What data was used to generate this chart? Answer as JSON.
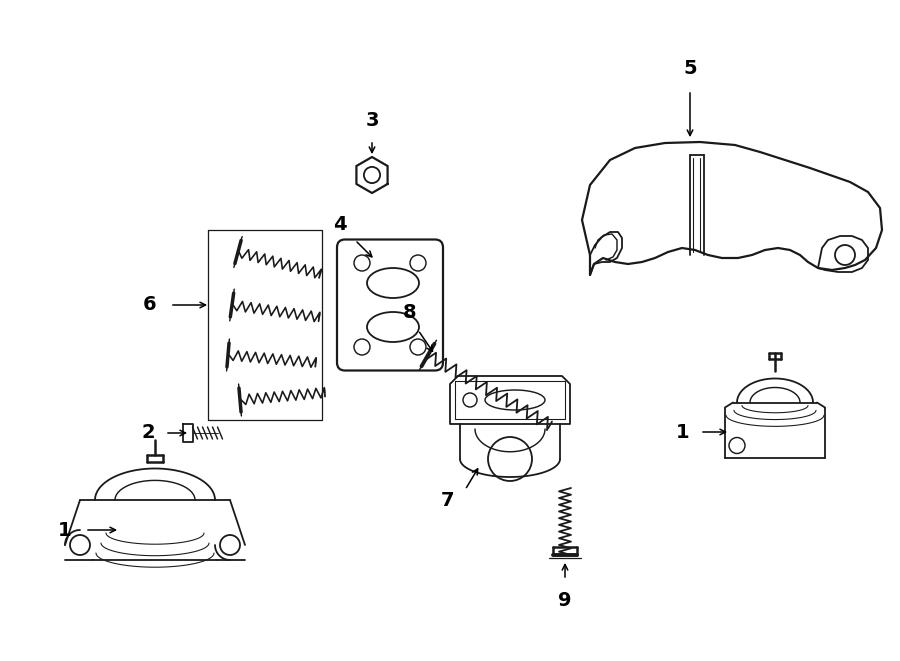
{
  "bg_color": "#ffffff",
  "line_color": "#1a1a1a",
  "figsize": [
    9.0,
    6.61
  ],
  "dpi": 100,
  "parts": {
    "label_fontsize": 14,
    "label_fontweight": "bold"
  }
}
